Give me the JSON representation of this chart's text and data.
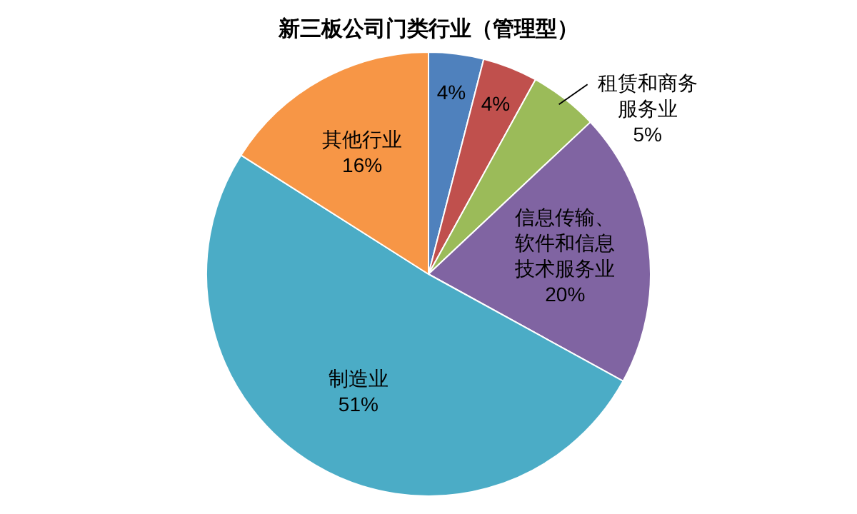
{
  "chart_data": {
    "type": "pie",
    "title": "新三板公司门类行业（管理型）",
    "categories": [
      null,
      null,
      "租赁和商务服务业",
      "信息传输、软件和信息技术服务业",
      "制造业",
      "其他行业"
    ],
    "values": [
      4,
      4,
      5,
      20,
      51,
      16
    ],
    "value_labels": [
      "4%",
      "4%",
      "5%",
      "20%",
      "51%",
      "16%"
    ],
    "colors": [
      "#4f81bd",
      "#c0504d",
      "#9bbb59",
      "#8064a2",
      "#4bacc6",
      "#f79646"
    ],
    "legend": false
  }
}
